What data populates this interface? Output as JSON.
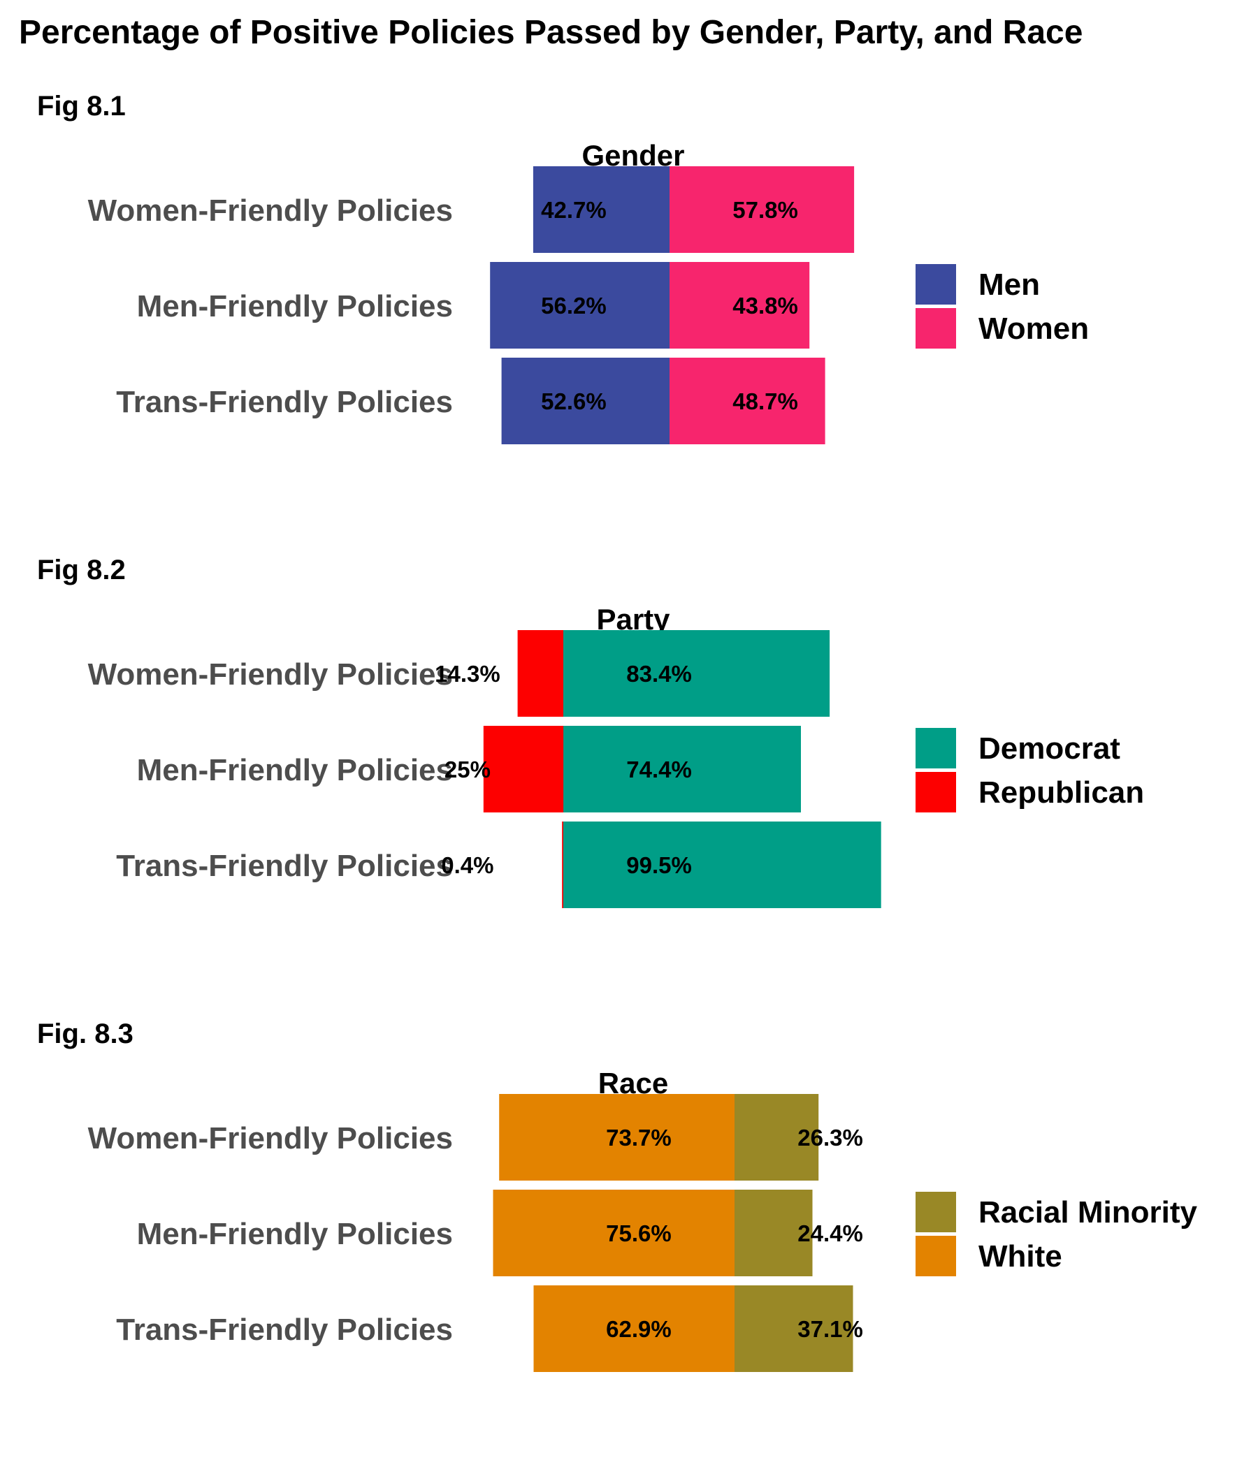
{
  "chart_data": {
    "title": "Percentage of Positive Policies Passed by Gender, Party, and Race",
    "type": "bar",
    "orientation": "horizontal",
    "layout": "diverging-stacked",
    "categories": [
      "Women-Friendly Policies",
      "Men-Friendly Policies",
      "Trans-Friendly Policies"
    ],
    "panels": [
      {
        "fig_label": "Fig 8.1",
        "title": "Gender",
        "left_series": "Men",
        "series": [
          {
            "name": "Men",
            "color": "#3b4a9e",
            "values": [
              42.7,
              56.2,
              52.6
            ],
            "labels": [
              "42.7%",
              "56.2%",
              "52.6%"
            ]
          },
          {
            "name": "Women",
            "color": "#f7256d",
            "values": [
              57.8,
              43.8,
              48.7
            ],
            "labels": [
              "57.8%",
              "43.8%",
              "48.7%"
            ]
          }
        ],
        "legend": [
          "Men",
          "Women"
        ]
      },
      {
        "fig_label": "Fig 8.2",
        "title": "Party",
        "left_series": "Republican",
        "series": [
          {
            "name": "Democrat",
            "color": "#009e87",
            "values": [
              83.4,
              74.4,
              99.5
            ],
            "labels": [
              "83.4%",
              "74.4%",
              "99.5%"
            ]
          },
          {
            "name": "Republican",
            "color": "#fd0000",
            "values": [
              14.3,
              25,
              0.4
            ],
            "labels": [
              "14.3%",
              "25%",
              "0.4%"
            ]
          }
        ],
        "legend": [
          "Democrat",
          "Republican"
        ]
      },
      {
        "fig_label": "Fig. 8.3",
        "title": "Race",
        "left_series": "White",
        "series": [
          {
            "name": "Racial Minority",
            "color": "#998826",
            "values": [
              26.3,
              24.4,
              37.1
            ],
            "labels": [
              "26.3%",
              "24.4%",
              "37.1%"
            ]
          },
          {
            "name": "White",
            "color": "#e38300",
            "values": [
              73.7,
              75.6,
              62.9
            ],
            "labels": [
              "73.7%",
              "75.6%",
              "62.9%"
            ]
          }
        ],
        "legend": [
          "Racial Minority",
          "White"
        ]
      }
    ]
  }
}
